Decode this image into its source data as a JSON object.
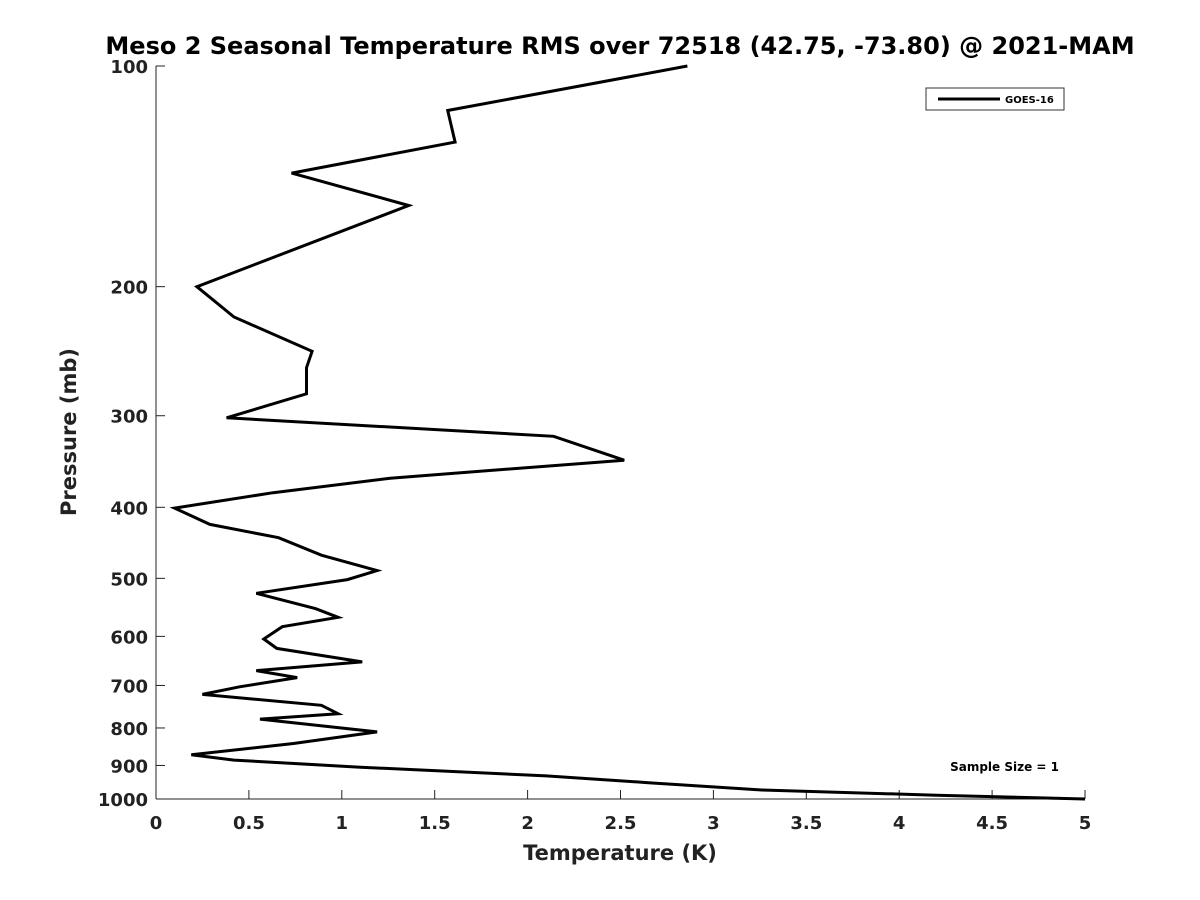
{
  "chart_data": {
    "type": "line",
    "title": "Meso 2 Seasonal Temperature RMS over 72518 (42.75, -73.80) @ 2021-MAM",
    "xlabel": "Temperature (K)",
    "ylabel": "Pressure (mb)",
    "xlim": [
      0,
      5
    ],
    "ylim": [
      100,
      1000
    ],
    "y_scale": "log",
    "y_direction": "reversed",
    "grid": false,
    "legend_position": "top-right",
    "x_ticks": [
      "0",
      "0.5",
      "1",
      "1.5",
      "2",
      "2.5",
      "3",
      "3.5",
      "4",
      "4.5",
      "5"
    ],
    "y_ticks": [
      "100",
      "200",
      "300",
      "400",
      "500",
      "600",
      "700",
      "800",
      "900",
      "1000"
    ],
    "series": [
      {
        "name": "GOES-16",
        "color": "#000000",
        "x": [
          2.86,
          1.57,
          1.61,
          0.73,
          1.36,
          0.22,
          0.42,
          0.84,
          0.81,
          0.81,
          0.38,
          2.14,
          2.52,
          1.26,
          0.63,
          0.1,
          0.29,
          0.66,
          0.89,
          1.19,
          1.03,
          0.54,
          0.86,
          0.98,
          0.68,
          0.58,
          0.65,
          1.11,
          0.54,
          0.76,
          0.45,
          0.25,
          0.89,
          0.98,
          0.56,
          1.19,
          0.74,
          0.19,
          0.42,
          1.1,
          2.1,
          2.65,
          3.26,
          4.2,
          5.0
        ],
        "y": [
          100,
          115,
          127,
          140,
          155,
          200,
          220,
          245,
          258,
          280,
          302,
          320,
          345,
          365,
          382,
          401,
          422,
          440,
          465,
          488,
          502,
          524,
          550,
          565,
          582,
          605,
          623,
          650,
          668,
          683,
          703,
          720,
          745,
          765,
          778,
          810,
          840,
          870,
          885,
          905,
          930,
          950,
          972,
          988,
          1000
        ]
      }
    ],
    "annotations": [
      "Sample Size = 1"
    ]
  }
}
